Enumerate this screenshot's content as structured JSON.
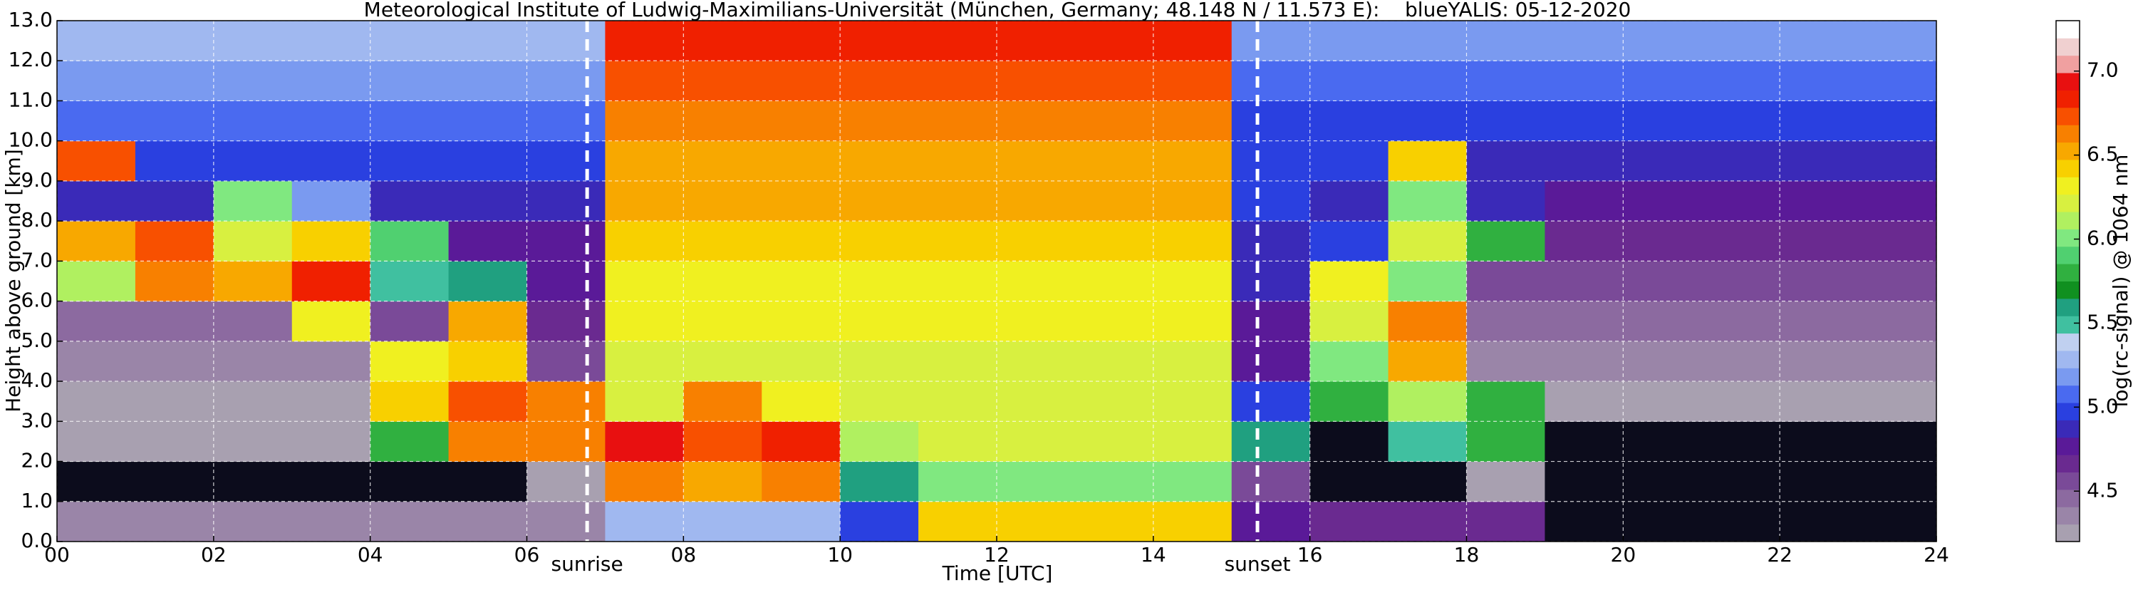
{
  "chart_data": {
    "type": "heatmap",
    "title": "Meteorological Institute of Ludwig-Maximilians-Universität (München, Germany; 48.148 N / 11.573 E):    blueYALIS: 05-12-2020",
    "x_label": "Time [UTC]",
    "y_label": "Height above ground [km]",
    "colorbar_label": "log(rc-signal) @ 1064 nm",
    "xlim": [
      0,
      24
    ],
    "ylim": [
      0,
      13
    ],
    "xticks": [
      {
        "value": 0,
        "label": "00"
      },
      {
        "value": 2,
        "label": "02"
      },
      {
        "value": 4,
        "label": "04"
      },
      {
        "value": 6,
        "label": "06"
      },
      {
        "value": 8,
        "label": "08"
      },
      10,
      12,
      14,
      16,
      18,
      20,
      22,
      24
    ],
    "yticks": [
      {
        "value": 0,
        "label": "0.0"
      },
      {
        "value": 1,
        "label": "1.0"
      },
      {
        "value": 2,
        "label": "2.0"
      },
      {
        "value": 3,
        "label": "3.0"
      },
      {
        "value": 4,
        "label": "4.0"
      },
      {
        "value": 5,
        "label": "5.0"
      },
      {
        "value": 6,
        "label": "6.0"
      },
      {
        "value": 7,
        "label": "7.0"
      },
      {
        "value": 8,
        "label": "8.0"
      },
      {
        "value": 9,
        "label": "9.0"
      },
      {
        "value": 10,
        "label": "10.0"
      },
      {
        "value": 11,
        "label": "11.0"
      },
      {
        "value": 12,
        "label": "12.0"
      },
      {
        "value": 13,
        "label": "13.0"
      }
    ],
    "zlim": [
      4.2,
      7.3
    ],
    "zticks": [
      {
        "value": 4.5,
        "label": "4.5"
      },
      {
        "value": 5,
        "label": "5.0"
      },
      {
        "value": 5.5,
        "label": "5.5"
      },
      {
        "value": 6,
        "label": "6.0"
      },
      {
        "value": 6.5,
        "label": "6.5"
      },
      {
        "value": 7,
        "label": "7.0"
      }
    ],
    "grid": true,
    "under_color": "#0c0c1c",
    "colorscale": [
      "#a8a0b0",
      "#9a85a8",
      "#8c6aa0",
      "#7a4a98",
      "#6a2a90",
      "#5a1a98",
      "#3a2ab8",
      "#2a40e0",
      "#4a6af0",
      "#7a9af0",
      "#a0b8f0",
      "#c0d0f0",
      "#40c0a0",
      "#20a080",
      "#109020",
      "#30b040",
      "#50d070",
      "#80e880",
      "#b0f060",
      "#d8f040",
      "#f0f020",
      "#f8d000",
      "#f8a800",
      "#f88000",
      "#f85000",
      "#f02000",
      "#e81010",
      "#f0a0a0",
      "#f0d0d0",
      "#ffffff"
    ],
    "annotations": [
      {
        "label": "sunrise",
        "x": 6.77
      },
      {
        "label": "sunset",
        "x": 15.33
      }
    ],
    "x_edges": [
      0,
      1,
      2,
      3,
      4,
      5,
      6,
      7,
      8,
      9,
      10,
      11,
      12,
      13,
      14,
      15,
      16,
      17,
      18,
      19,
      20,
      21,
      22,
      23,
      24
    ],
    "y_edges": [
      0,
      1,
      2,
      3,
      4,
      5,
      6,
      7,
      8,
      9,
      10,
      11,
      12,
      13
    ],
    "z": [
      [
        4.4,
        4.4,
        4.4,
        4.4,
        4.4,
        4.4,
        4.4,
        5.3,
        5.3,
        5.3,
        5.0,
        6.4,
        6.4,
        6.4,
        6.4,
        4.8,
        4.7,
        4.7,
        4.7,
        3.9,
        3.9,
        3.9,
        3.9,
        3.9
      ],
      [
        4.1,
        4.1,
        4.1,
        4.1,
        4.1,
        4.1,
        4.3,
        6.6,
        6.5,
        6.6,
        5.6,
        6.0,
        6.0,
        6.0,
        6.0,
        4.6,
        3.9,
        4.0,
        4.2,
        3.9,
        3.9,
        3.9,
        3.9,
        3.9
      ],
      [
        4.2,
        4.2,
        4.2,
        4.2,
        5.8,
        6.6,
        6.6,
        6.9,
        6.7,
        6.8,
        6.1,
        6.2,
        6.2,
        6.2,
        6.2,
        5.6,
        4.0,
        5.5,
        5.8,
        3.9,
        3.9,
        3.9,
        3.9,
        3.9
      ],
      [
        4.3,
        4.3,
        4.3,
        4.3,
        6.4,
        6.7,
        6.6,
        6.2,
        6.6,
        6.3,
        6.2,
        6.2,
        6.2,
        6.2,
        6.2,
        5.0,
        5.8,
        6.1,
        5.8,
        4.2,
        4.2,
        4.2,
        4.2,
        4.2
      ],
      [
        4.4,
        4.4,
        4.4,
        4.4,
        6.3,
        6.4,
        4.6,
        6.2,
        6.2,
        6.2,
        6.2,
        6.2,
        6.2,
        6.2,
        6.2,
        4.8,
        6.0,
        6.5,
        4.4,
        4.4,
        4.4,
        4.4,
        4.4,
        4.4
      ],
      [
        4.5,
        4.5,
        4.5,
        6.3,
        4.6,
        6.5,
        4.7,
        6.3,
        6.3,
        6.3,
        6.3,
        6.3,
        6.3,
        6.3,
        6.3,
        4.8,
        6.2,
        6.6,
        4.5,
        4.5,
        4.5,
        4.5,
        4.5,
        4.5
      ],
      [
        6.1,
        6.6,
        6.5,
        6.8,
        5.5,
        5.6,
        4.8,
        6.3,
        6.3,
        6.3,
        6.3,
        6.3,
        6.3,
        6.3,
        6.3,
        4.9,
        6.3,
        6.0,
        4.6,
        4.6,
        4.6,
        4.6,
        4.6,
        4.6
      ],
      [
        6.5,
        6.7,
        6.2,
        6.4,
        5.9,
        4.8,
        4.8,
        6.4,
        6.4,
        6.4,
        6.4,
        6.4,
        6.4,
        6.4,
        6.4,
        4.9,
        5.0,
        6.2,
        5.8,
        4.7,
        4.7,
        4.7,
        4.7,
        4.7
      ],
      [
        4.9,
        4.9,
        6.0,
        5.2,
        4.9,
        4.9,
        4.9,
        6.5,
        6.5,
        6.5,
        6.5,
        6.5,
        6.5,
        6.5,
        6.5,
        5.0,
        4.9,
        6.0,
        4.9,
        4.8,
        4.8,
        4.8,
        4.8,
        4.8
      ],
      [
        6.7,
        5.0,
        5.0,
        5.0,
        5.0,
        5.0,
        5.0,
        6.5,
        6.5,
        6.5,
        6.5,
        6.5,
        6.5,
        6.5,
        6.5,
        5.0,
        5.0,
        6.4,
        4.9,
        4.9,
        4.9,
        4.9,
        4.9,
        4.9
      ],
      [
        5.1,
        5.1,
        5.1,
        5.1,
        5.1,
        5.1,
        5.1,
        6.6,
        6.6,
        6.6,
        6.6,
        6.6,
        6.6,
        6.6,
        6.6,
        5.0,
        5.0,
        5.0,
        5.0,
        5.0,
        5.0,
        5.0,
        5.0,
        5.0
      ],
      [
        5.2,
        5.2,
        5.2,
        5.2,
        5.2,
        5.2,
        5.2,
        6.7,
        6.7,
        6.7,
        6.7,
        6.7,
        6.7,
        6.7,
        6.7,
        5.1,
        5.1,
        5.1,
        5.1,
        5.1,
        5.1,
        5.1,
        5.1,
        5.1
      ],
      [
        5.3,
        5.3,
        5.3,
        5.3,
        5.3,
        5.3,
        5.3,
        6.8,
        6.8,
        6.8,
        6.8,
        6.8,
        6.8,
        6.8,
        6.8,
        5.2,
        5.2,
        5.2,
        5.2,
        5.2,
        5.2,
        5.2,
        5.2,
        5.2
      ]
    ]
  }
}
